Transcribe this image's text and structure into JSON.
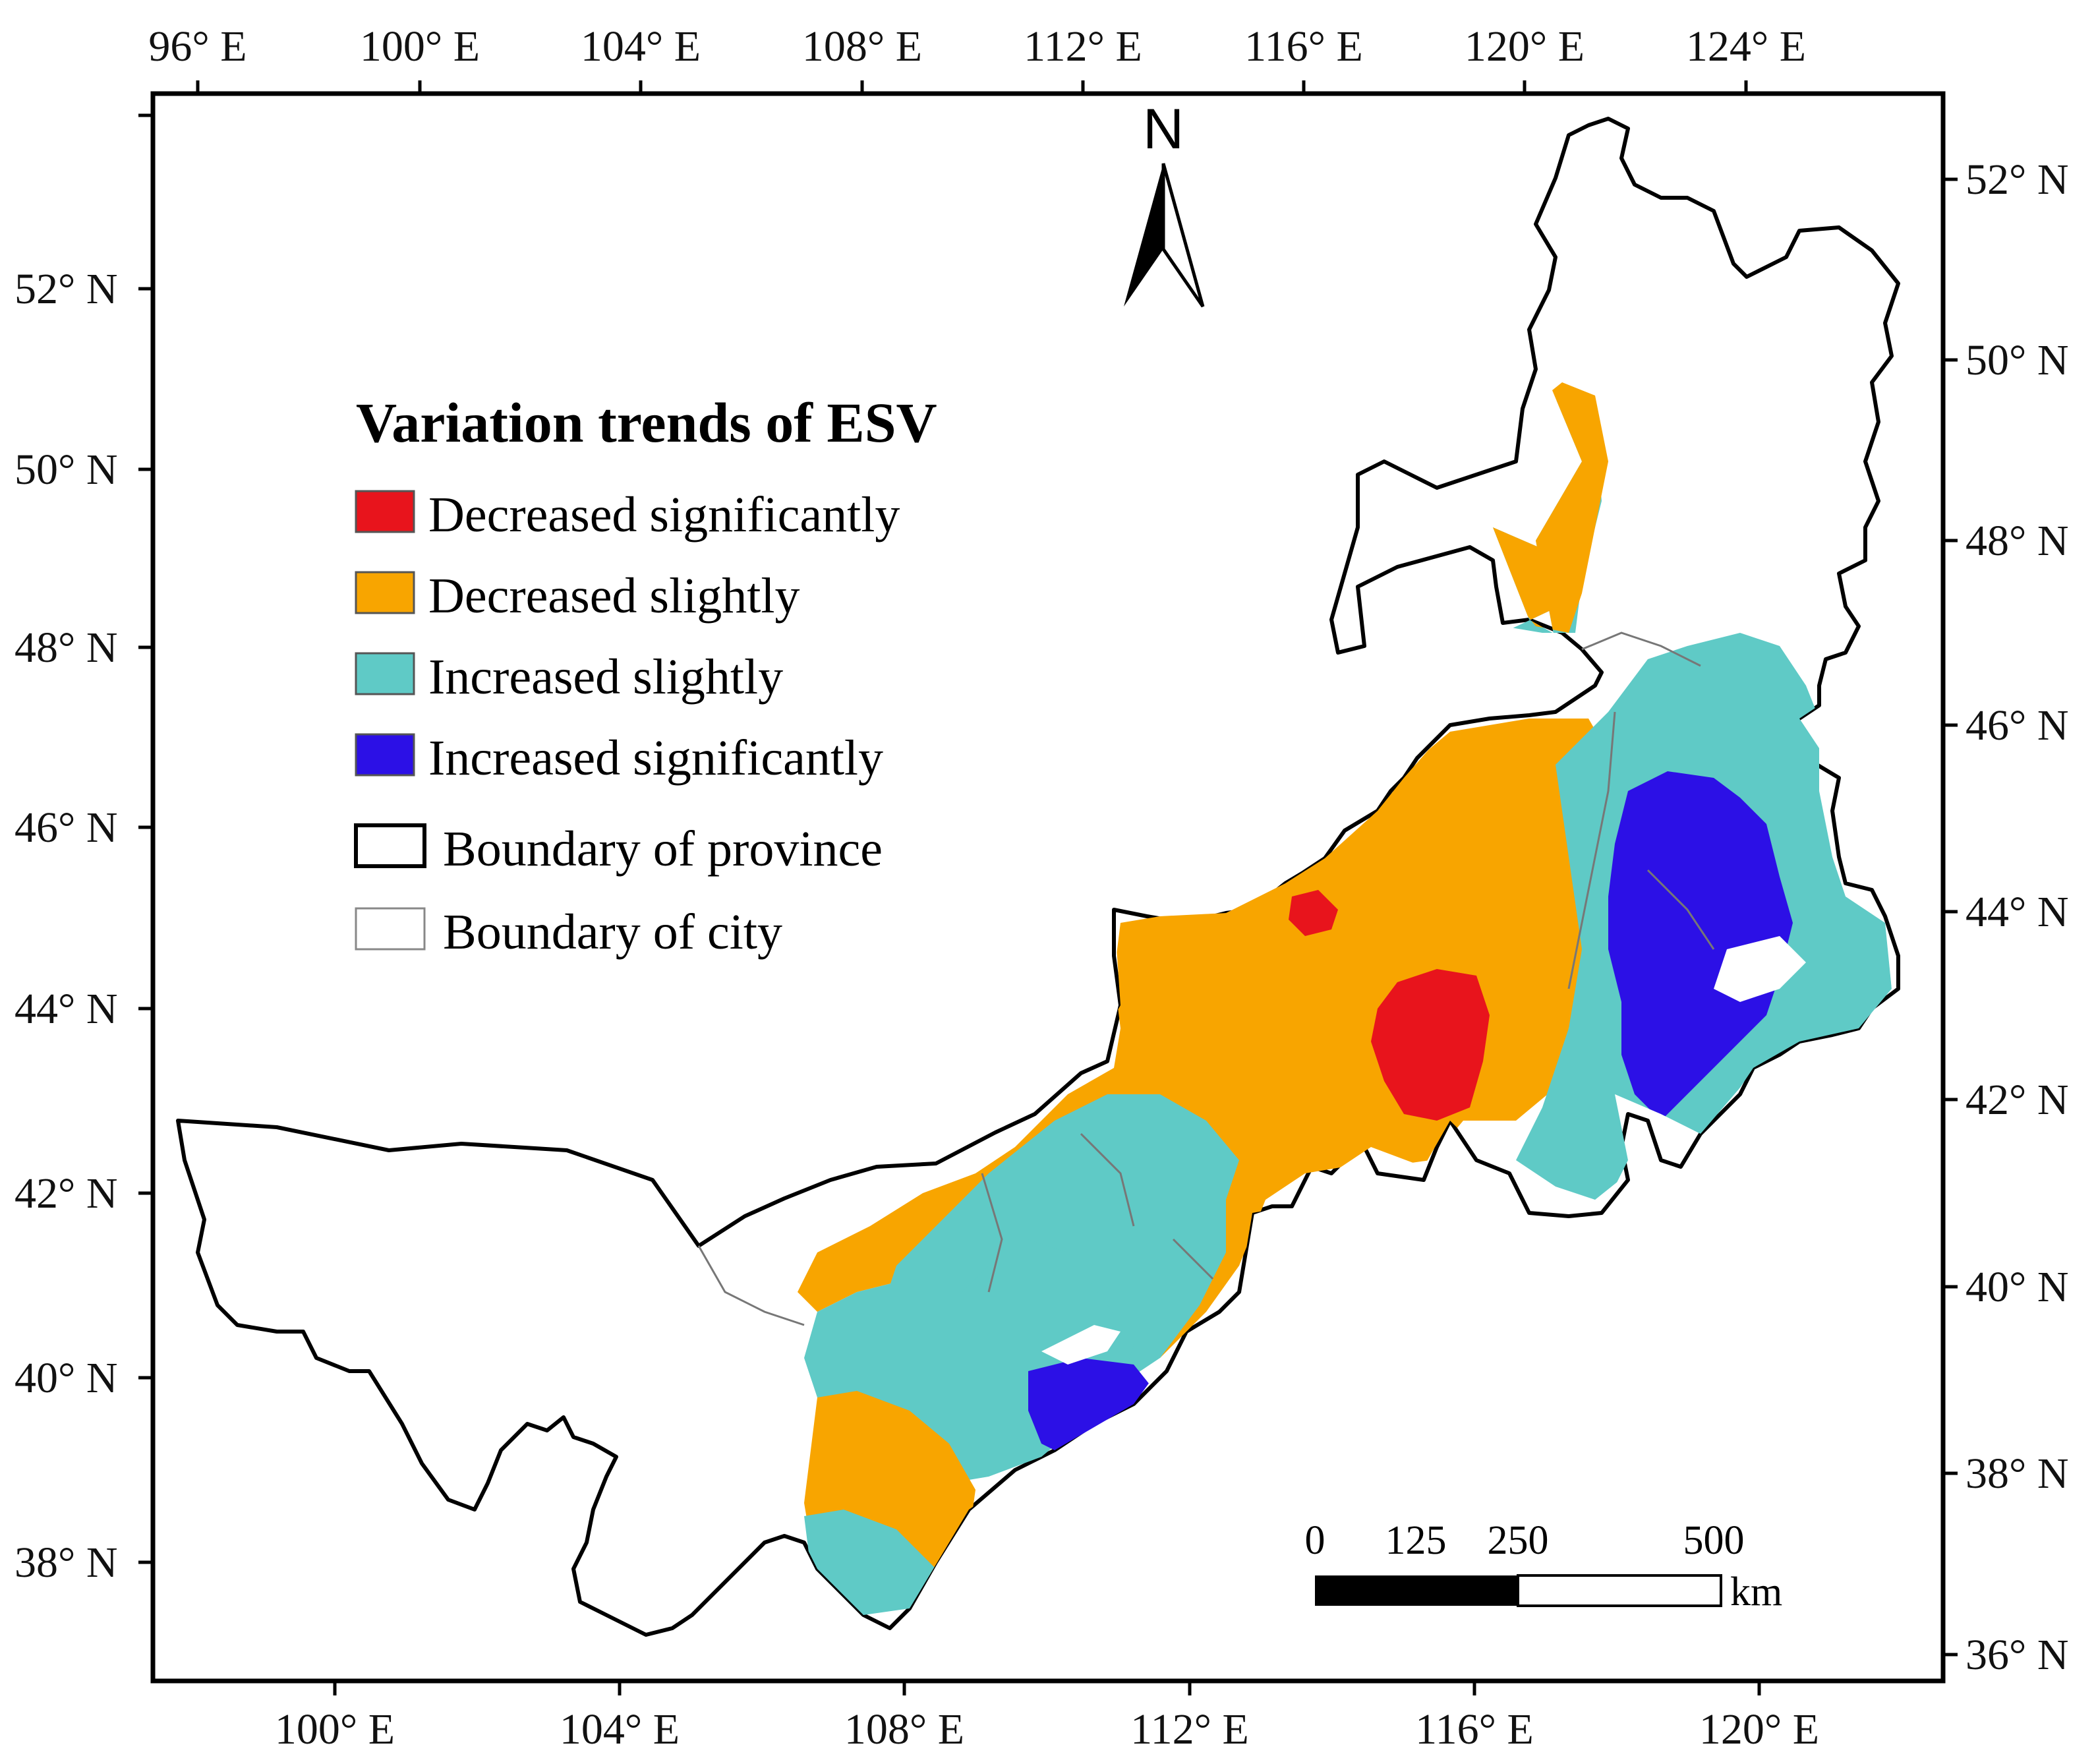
{
  "map": {
    "north_arrow_label": "N",
    "top_axis_labels": [
      "96° E",
      "100° E",
      "104° E",
      "108° E",
      "112° E",
      "116° E",
      "120° E",
      "124° E"
    ],
    "bottom_axis_labels": [
      "100° E",
      "104° E",
      "108° E",
      "112° E",
      "116° E",
      "120° E"
    ],
    "left_axis_labels": [
      "52° N",
      "50° N",
      "48° N",
      "46° N",
      "44° N",
      "42° N",
      "40° N",
      "38° N"
    ],
    "right_axis_labels": [
      "52° N",
      "50° N",
      "48° N",
      "46° N",
      "44° N",
      "42° N",
      "40° N",
      "38° N",
      "36° N"
    ]
  },
  "legend": {
    "title": "Variation trends of ESV",
    "items": [
      {
        "label": "Decreased significantly",
        "color": "#e8141c"
      },
      {
        "label": "Decreased slightly",
        "color": "#f8a500"
      },
      {
        "label": "Increased slightly",
        "color": "#5fcac6"
      },
      {
        "label": "Increased significantly",
        "color": "#2c10e6"
      },
      {
        "label": "Boundary of province",
        "color": "#000000"
      },
      {
        "label": "Boundary of city",
        "color": "#888888"
      }
    ]
  },
  "scale_bar": {
    "labels": [
      "0",
      "125",
      "250",
      "500"
    ],
    "unit": "km"
  }
}
